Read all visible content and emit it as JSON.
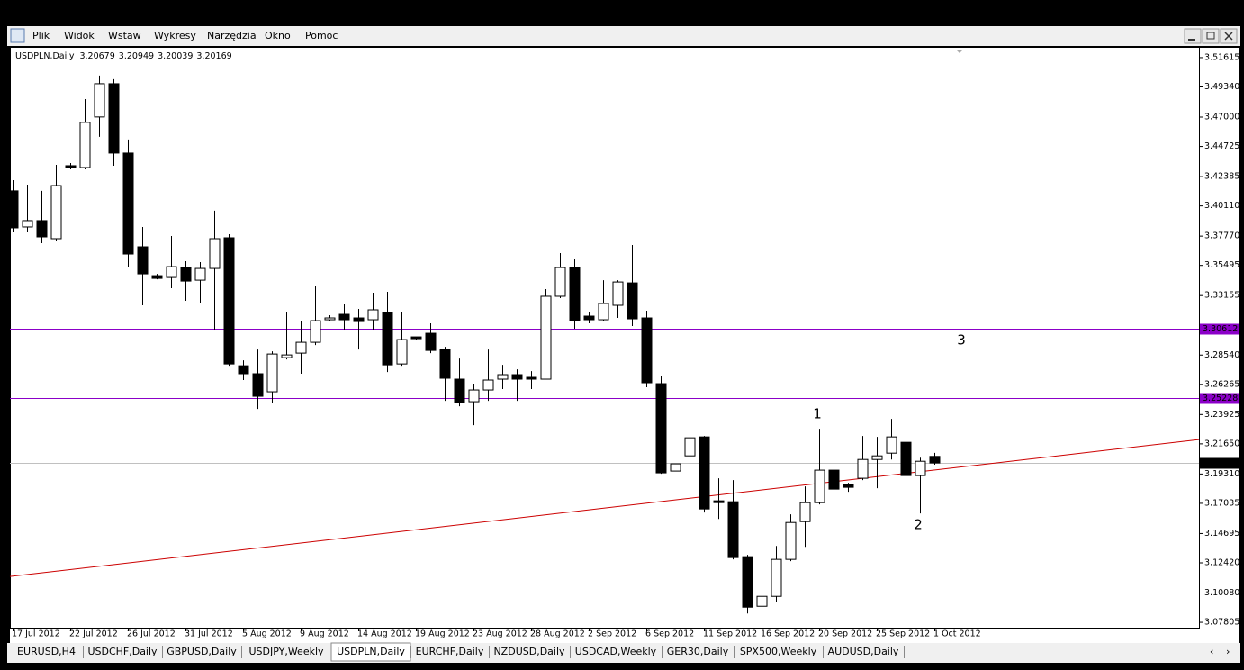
{
  "menu": [
    "Plik",
    "Widok",
    "Wstaw",
    "Wykresy",
    "Narzędzia",
    "Okno",
    "Pomoc"
  ],
  "tabs": {
    "items": [
      "EURUSD,H4",
      "USDCHF,Daily",
      "GBPUSD,Daily",
      "USDJPY,Weekly",
      "USDPLN,Daily",
      "EURCHF,Daily",
      "NZDUSD,Daily",
      "USDCAD,Weekly",
      "GER30,Daily",
      "SPX500,Weekly",
      "AUDUSD,Daily"
    ],
    "active": 4
  },
  "chart_data": {
    "type": "candlestick",
    "title": "USDPLN,Daily",
    "categories": [
      "17 Jul 2012",
      null,
      null,
      null,
      "22 Jul 2012",
      null,
      null,
      null,
      "26 Jul 2012",
      null,
      null,
      null,
      "31 Jul 2012",
      null,
      null,
      null,
      "5 Aug 2012",
      null,
      null,
      null,
      "9 Aug 2012",
      null,
      null,
      null,
      "14 Aug 2012",
      null,
      null,
      null,
      "19 Aug 2012",
      null,
      null,
      null,
      "23 Aug 2012",
      null,
      null,
      null,
      "28 Aug 2012",
      null,
      null,
      null,
      "2 Sep 2012",
      null,
      null,
      null,
      "6 Sep 2012",
      null,
      null,
      null,
      "11 Sep 2012",
      null,
      null,
      null,
      "16 Sep 2012",
      null,
      null,
      null,
      "20 Sep 2012",
      null,
      null,
      null,
      "25 Sep 2012",
      null,
      null,
      null,
      "1 Oct 2012"
    ],
    "open": [
      3.4128,
      3.3848,
      3.3897,
      3.3757,
      3.4323,
      3.4309,
      3.4701,
      3.4959,
      3.4421,
      3.3694,
      3.347,
      3.3456,
      3.3533,
      3.3435,
      3.3526,
      3.3764,
      3.2771,
      3.2709,
      3.2569,
      3.2834,
      3.2869,
      3.2953,
      3.3128,
      3.317,
      3.3142,
      3.3128,
      3.3184,
      3.2785,
      3.2995,
      3.3023,
      3.2897,
      3.2667,
      3.2492,
      3.2583,
      3.2667,
      3.2702,
      3.2681,
      3.2667,
      3.331,
      3.3533,
      3.3156,
      3.3128,
      3.324,
      3.3414,
      3.3142,
      3.2632,
      3.1954,
      3.2072,
      3.2219,
      3.1723,
      3.1716,
      3.129,
      3.0905,
      3.0982,
      3.1269,
      3.1562,
      3.1709,
      3.1961,
      3.1849,
      3.1898,
      3.2044,
      3.2093,
      3.2177,
      3.1919,
      3.20679
    ],
    "high": [
      3.4211,
      3.4176,
      3.4128,
      3.433,
      3.4344,
      3.484,
      3.5022,
      3.4994,
      3.4526,
      3.3848,
      3.3484,
      3.3778,
      3.3582,
      3.3575,
      3.3974,
      3.3792,
      3.2813,
      3.2897,
      3.2883,
      3.3191,
      3.3121,
      3.3387,
      3.3163,
      3.3247,
      3.3212,
      3.3338,
      3.3345,
      3.3184,
      3.2995,
      3.31,
      3.2918,
      3.2827,
      3.2632,
      3.2897,
      3.2778,
      3.2743,
      3.2729,
      3.3366,
      3.3645,
      3.3596,
      3.3191,
      3.3435,
      3.3435,
      3.3708,
      3.3198,
      3.2688,
      3.201,
      3.2275,
      3.2226,
      3.1898,
      3.1884,
      3.1304,
      3.0996,
      3.1373,
      3.1618,
      3.1835,
      3.2282,
      3.2016,
      3.1863,
      3.2226,
      3.2219,
      3.2359,
      3.231,
      3.2058,
      3.20949
    ],
    "low": [
      3.3806,
      3.3806,
      3.3722,
      3.3736,
      3.4295,
      3.4295,
      3.4547,
      3.4323,
      3.3533,
      3.324,
      3.3442,
      3.3373,
      3.3275,
      3.3261,
      3.3044,
      3.2771,
      3.266,
      3.2436,
      3.2485,
      3.282,
      3.2709,
      3.2932,
      3.3121,
      3.3051,
      3.2897,
      3.3051,
      3.2722,
      3.2771,
      3.2974,
      3.2869,
      3.2499,
      3.2457,
      3.231,
      3.2499,
      3.259,
      3.2499,
      3.259,
      3.2667,
      3.3296,
      3.3058,
      3.31,
      3.3121,
      3.3142,
      3.3079,
      3.2604,
      3.1933,
      3.1954,
      3.2003,
      3.1632,
      3.1583,
      3.1269,
      3.0849,
      3.0891,
      3.094,
      3.1255,
      3.1366,
      3.1695,
      3.1611,
      3.1793,
      3.1884,
      3.1821,
      3.2044,
      3.1856,
      3.1625,
      3.20039
    ],
    "close": [
      3.3841,
      3.3897,
      3.3771,
      3.4169,
      3.4309,
      3.4659,
      3.4959,
      3.4421,
      3.3638,
      3.3484,
      3.3449,
      3.354,
      3.3428,
      3.3526,
      3.3757,
      3.2785,
      3.2709,
      3.2534,
      3.2862,
      3.2855,
      3.2953,
      3.3121,
      3.3142,
      3.3128,
      3.3114,
      3.3205,
      3.2778,
      3.2974,
      3.2981,
      3.289,
      3.2674,
      3.2485,
      3.2583,
      3.266,
      3.2702,
      3.2667,
      3.2667,
      3.331,
      3.3533,
      3.3121,
      3.3128,
      3.3254,
      3.3421,
      3.3135,
      3.2639,
      3.194,
      3.201,
      3.2212,
      3.166,
      3.1709,
      3.1283,
      3.0898,
      3.0982,
      3.1269,
      3.1555,
      3.1709,
      3.1961,
      3.1814,
      3.1828,
      3.2044,
      3.2072,
      3.2219,
      3.1919,
      3.203,
      3.20169
    ],
    "up_color": "#ffffff",
    "down_color": "#000000",
    "ylim": [
      3.0753,
      3.5224
    ],
    "yticks": [
      {
        "value": 3.51615,
        "label": "3.51615"
      },
      {
        "value": 3.4934,
        "label": "3.49340"
      },
      {
        "value": 3.47,
        "label": "3.47000"
      },
      {
        "value": 3.44725,
        "label": "3.44725"
      },
      {
        "value": 3.42385,
        "label": "3.42385"
      },
      {
        "value": 3.4011,
        "label": "3.40110"
      },
      {
        "value": 3.3777,
        "label": "3.37770"
      },
      {
        "value": 3.35495,
        "label": "3.35495"
      },
      {
        "value": 3.33155,
        "label": "3.33155"
      },
      {
        "value": 3.2854,
        "label": "3.28540"
      },
      {
        "value": 3.26265,
        "label": "3.26265"
      },
      {
        "value": 3.23925,
        "label": "3.23925"
      },
      {
        "value": 3.2165,
        "label": "3.21650"
      },
      {
        "value": 3.1931,
        "label": "3.19310"
      },
      {
        "value": 3.17035,
        "label": "3.17035"
      },
      {
        "value": 3.14695,
        "label": "3.14695"
      },
      {
        "value": 3.1242,
        "label": "3.12420"
      },
      {
        "value": 3.1008,
        "label": "3.10080"
      },
      {
        "value": 3.07805,
        "label": "3.07805"
      }
    ],
    "hlines": [
      {
        "value": 3.30612,
        "color": "#8b00c8",
        "label_color": "#8b00c8"
      },
      {
        "value": 3.25228,
        "color": "#8b00c8",
        "label_color": "#8b00c8"
      },
      {
        "value": 3.20169,
        "color": "#c0c0c0",
        "label_color": "#000000"
      }
    ],
    "trendline": {
      "color": "#cc0000",
      "values": [
        3.1136,
        3.2198
      ]
    },
    "annotations": [
      "1",
      "2",
      "3"
    ]
  }
}
